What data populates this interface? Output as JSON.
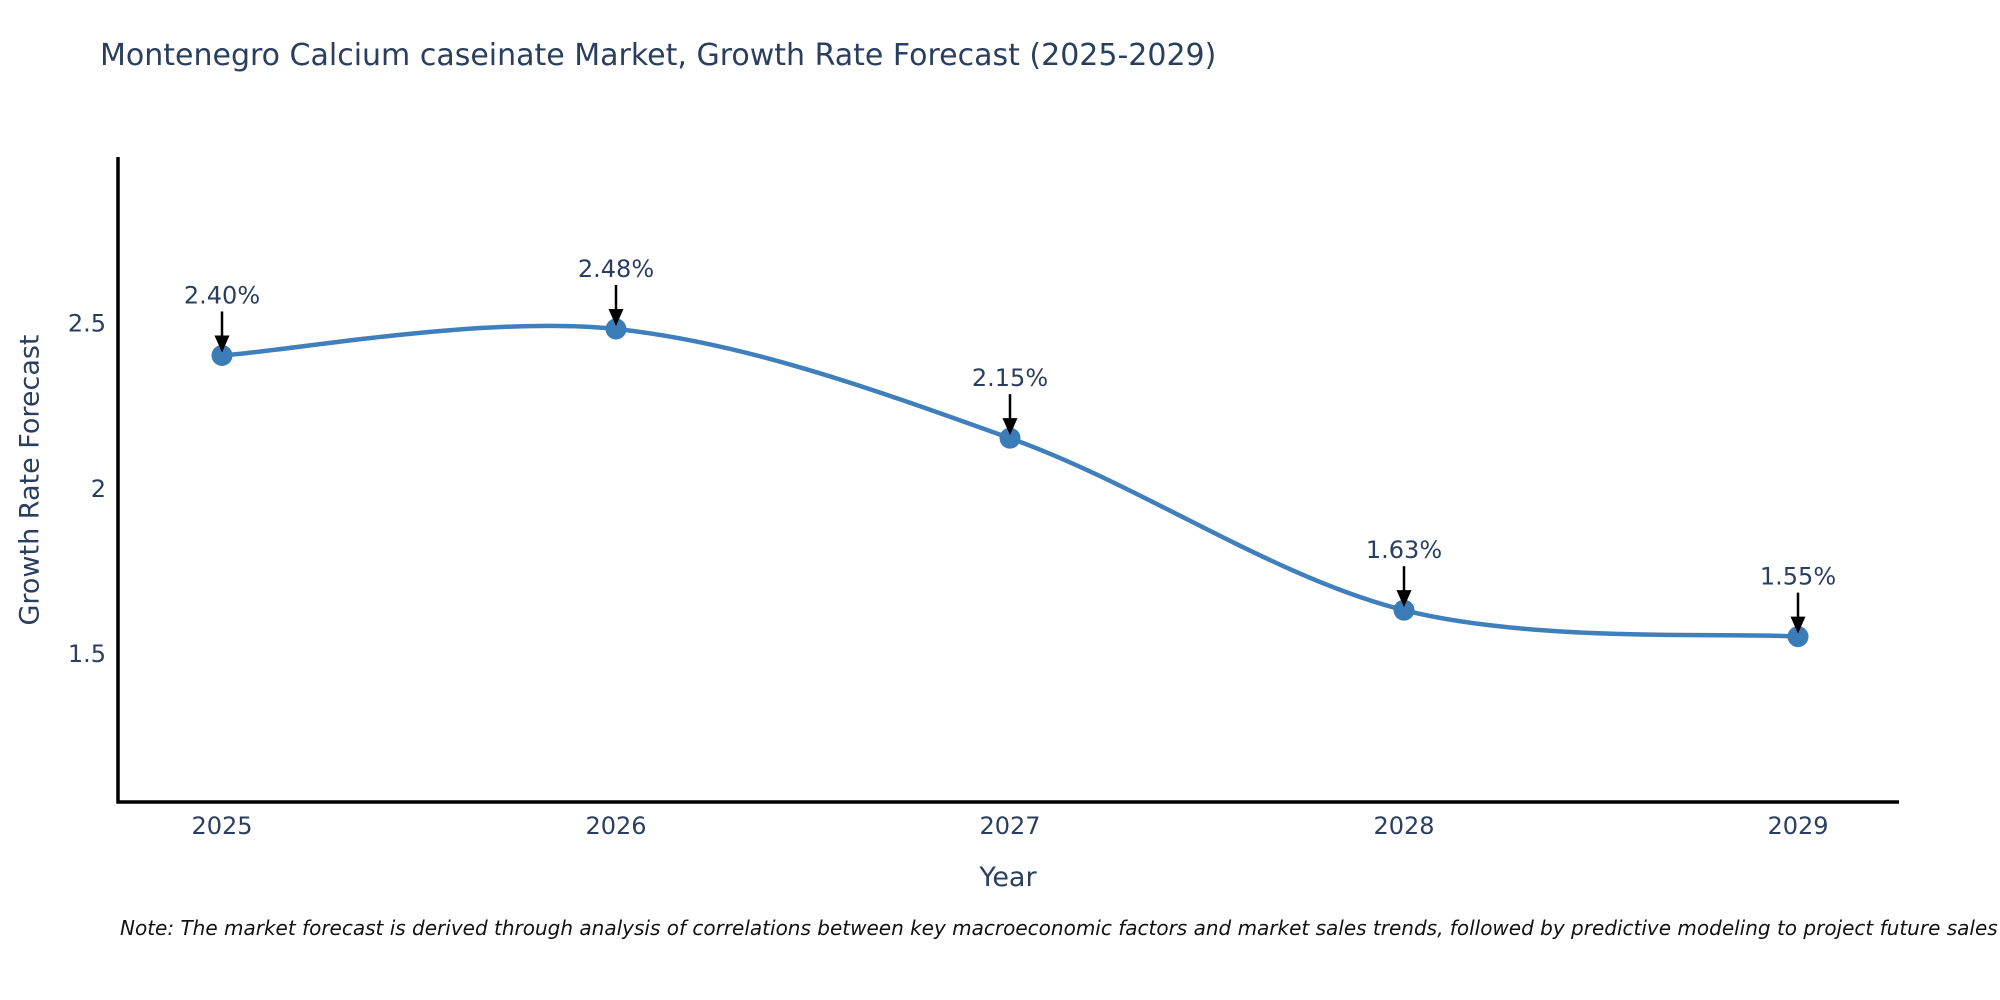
{
  "title": "Montenegro Calcium caseinate Market, Growth Rate Forecast (2025-2029)",
  "note": "Note: The market forecast is derived through analysis of correlations between key macroeconomic factors and market sales trends, followed by predictive modeling to project future sales",
  "chart_data": {
    "type": "line",
    "title": "Montenegro Calcium caseinate Market, Growth Rate Forecast (2025-2029)",
    "categories": [
      "2025",
      "2026",
      "2027",
      "2028",
      "2029"
    ],
    "values": [
      2.4,
      2.48,
      2.15,
      1.63,
      1.55
    ],
    "point_labels": [
      "2.40%",
      "2.48%",
      "2.15%",
      "1.63%",
      "1.55%"
    ],
    "xlabel": "Year",
    "ylabel": "Growth Rate Forecast",
    "yticks": [
      2.5,
      2,
      1.5
    ],
    "ytick_labels": [
      "2.5",
      "2",
      "1.5"
    ],
    "ylim": [
      1.05,
      3.0
    ],
    "line_shape": "spline",
    "grid": false,
    "legend": false,
    "annotations_have_arrows": true,
    "colors": {
      "line": "#3f80bc",
      "marker": "#3a7cb8",
      "axis": "#000000",
      "arrow": "#000000",
      "tick_text": "#2a3f5f",
      "annotation_text": "#2a3f5f",
      "title_text": "#2a3f5f",
      "background": "#ffffff"
    }
  }
}
